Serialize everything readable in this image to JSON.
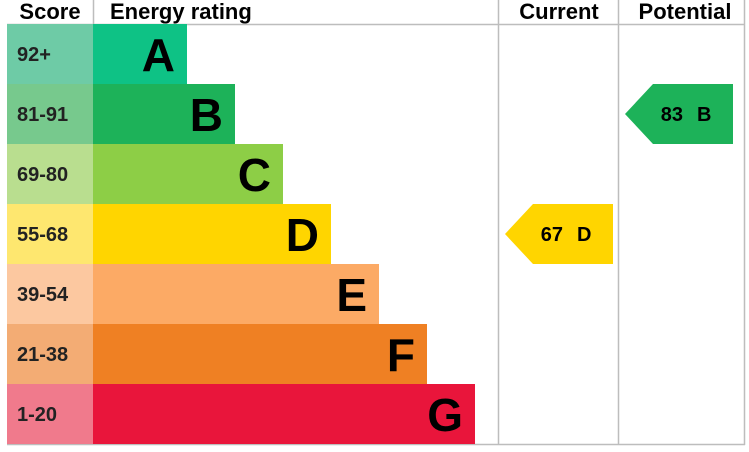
{
  "headers": {
    "score": "Score",
    "energy_rating": "Energy rating",
    "current": "Current",
    "potential": "Potential"
  },
  "chart_data": {
    "type": "bar",
    "categories": [
      "A",
      "B",
      "C",
      "D",
      "E",
      "F",
      "G"
    ],
    "bands": [
      {
        "letter": "A",
        "score": "92+",
        "bar_color": "#0ec285",
        "score_color": "#6ecba6"
      },
      {
        "letter": "B",
        "score": "81-91",
        "bar_color": "#1db259",
        "score_color": "#77c98d"
      },
      {
        "letter": "C",
        "score": "69-80",
        "bar_color": "#8dce46",
        "score_color": "#b9de8f"
      },
      {
        "letter": "D",
        "score": "55-68",
        "bar_color": "#ffd500",
        "score_color": "#fee76f"
      },
      {
        "letter": "E",
        "score": "39-54",
        "bar_color": "#fcaa65",
        "score_color": "#fcc8a0"
      },
      {
        "letter": "F",
        "score": "21-38",
        "bar_color": "#ef8023",
        "score_color": "#f3ac74"
      },
      {
        "letter": "G",
        "score": "1-20",
        "bar_color": "#e9153b",
        "score_color": "#f07a8c"
      }
    ],
    "current": {
      "value": 67,
      "band": "D",
      "color": "#ffd500"
    },
    "potential": {
      "value": 83,
      "band": "B",
      "color": "#1db259"
    }
  }
}
